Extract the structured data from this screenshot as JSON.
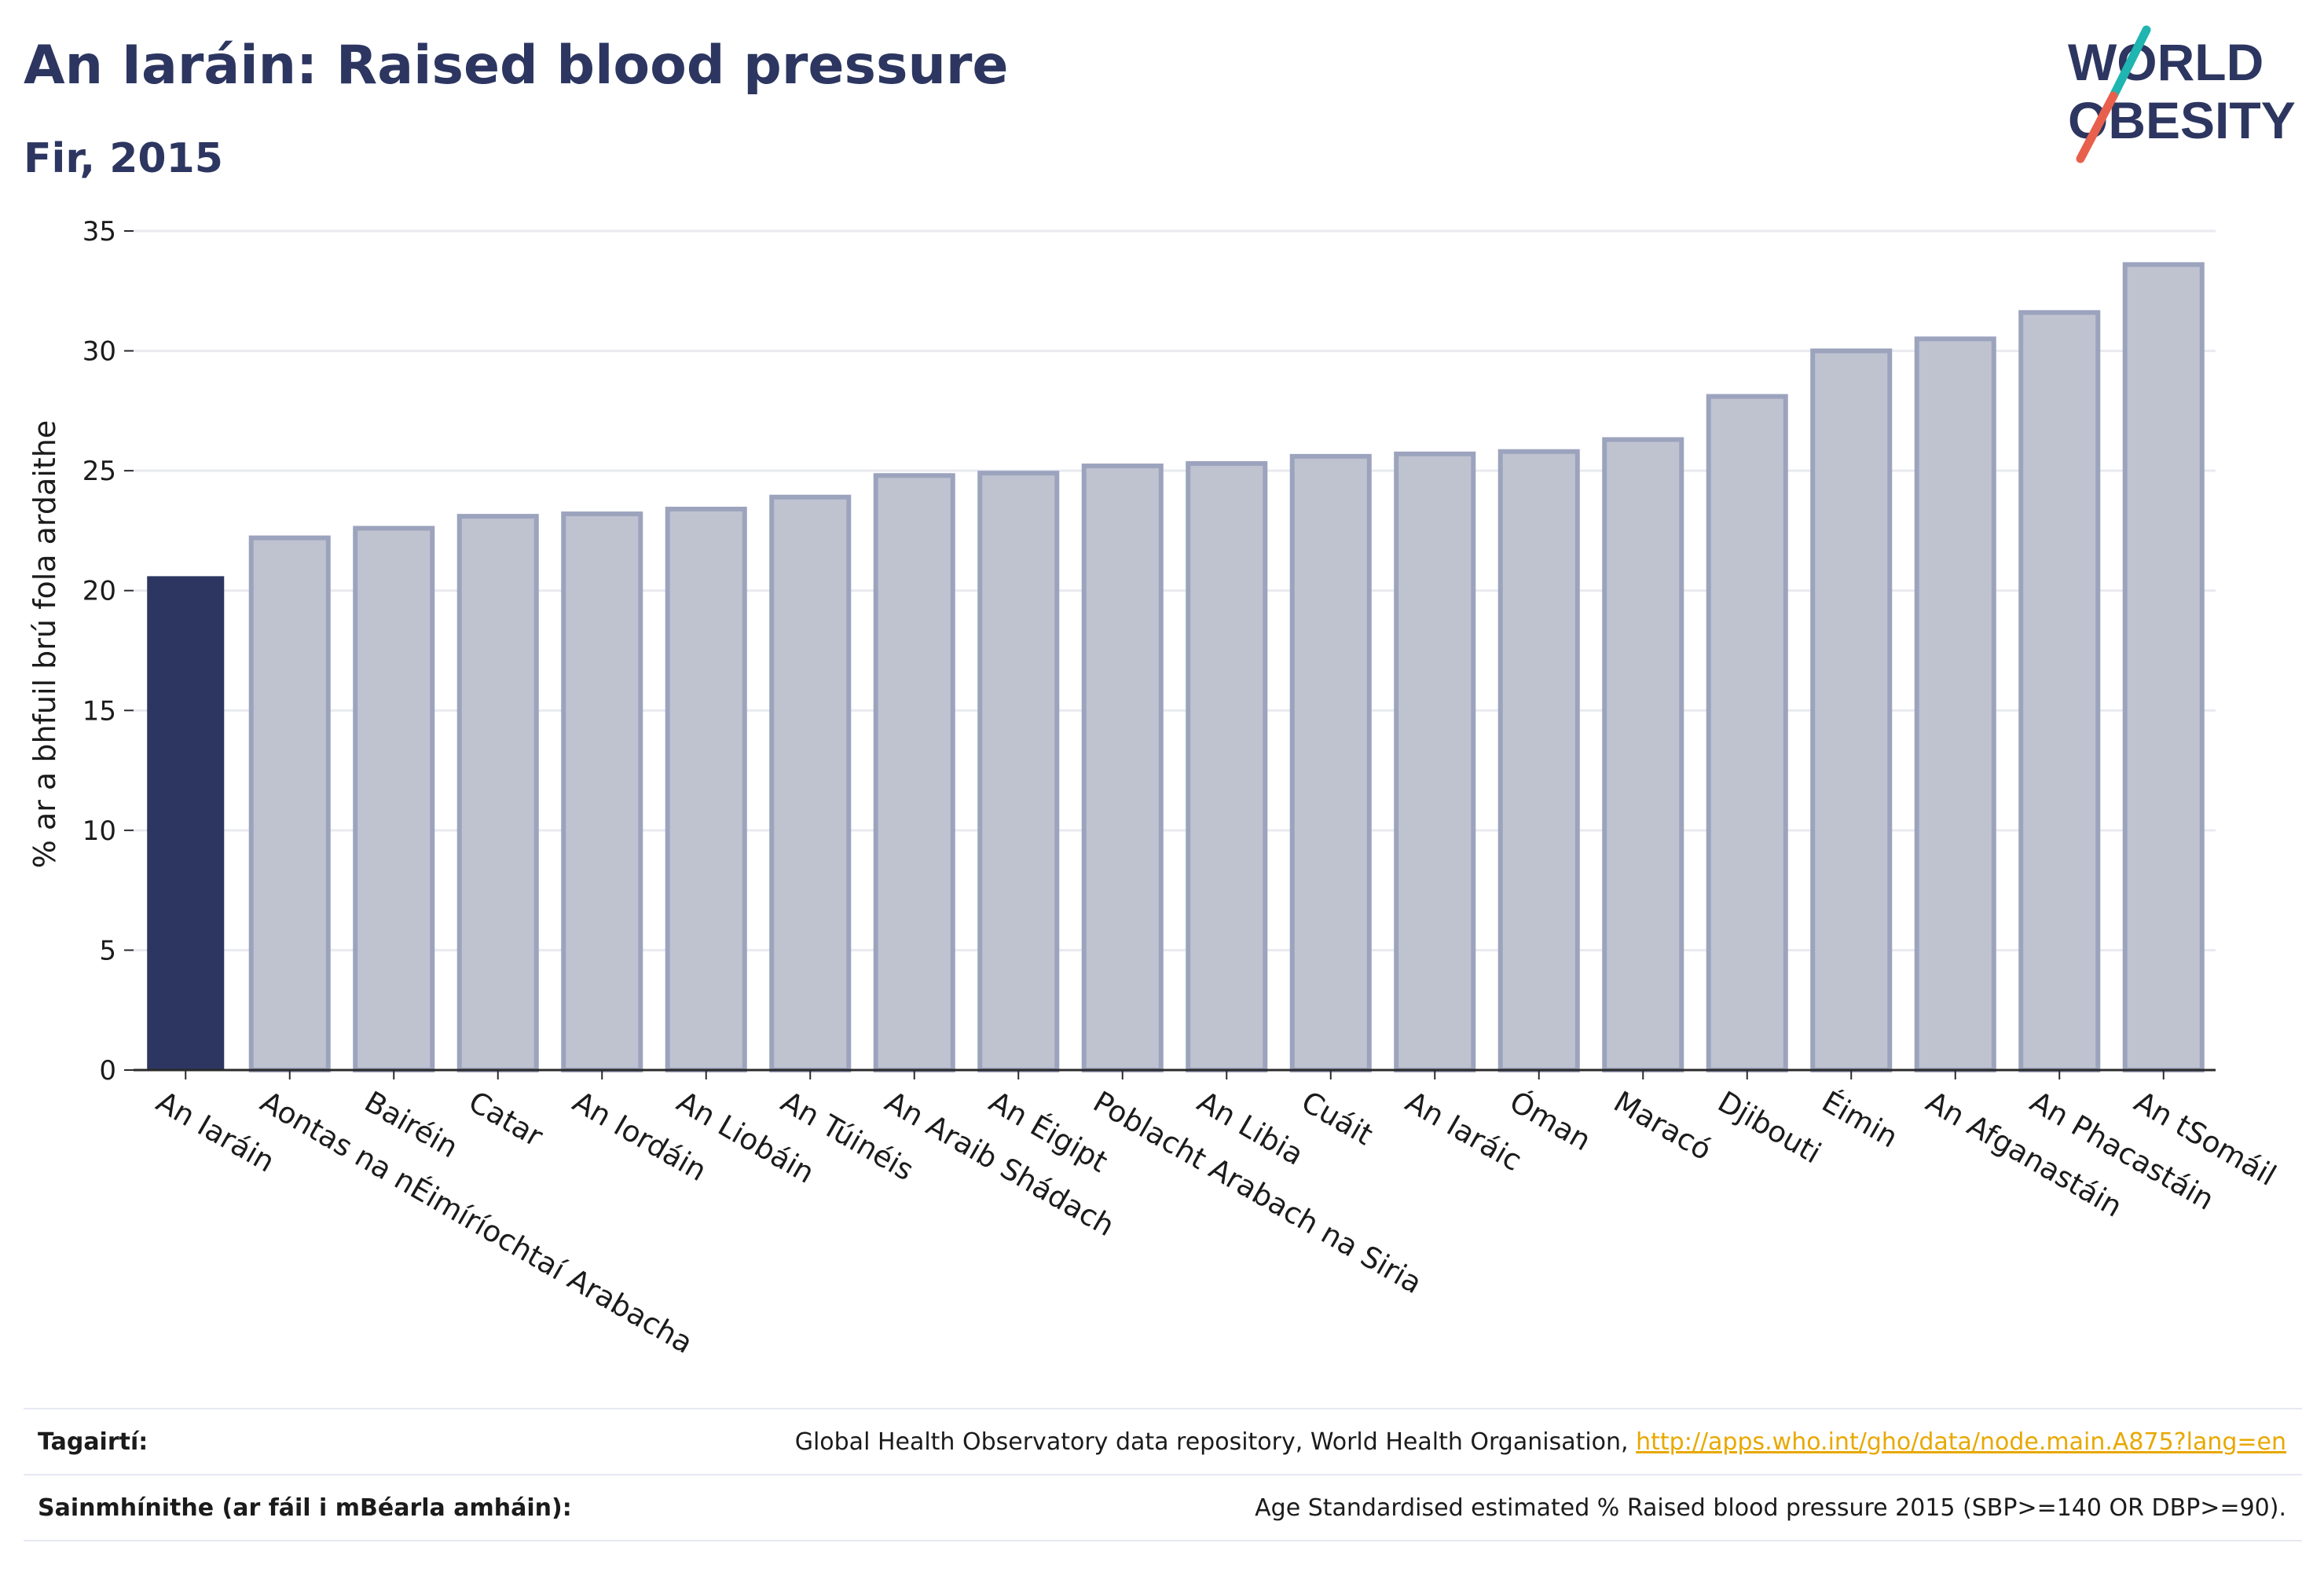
{
  "title": "An Iaráin: Raised blood pressure",
  "subtitle": "Fir, 2015",
  "logo": {
    "line1": "WORLD",
    "line2": "OBESITY",
    "accent_colors": [
      "#1fb5b0",
      "#e8604c"
    ]
  },
  "colors": {
    "highlight": "#2c3660",
    "bars": "#bfc3d0",
    "bar_stroke": "#9ca3bd",
    "grid": "#e9eaf0"
  },
  "chart_data": {
    "type": "bar",
    "title": "An Iaráin: Raised blood pressure",
    "subtitle": "Fir, 2015",
    "ylabel": "% ar a bhfuil brú fola ardaithe",
    "xlabel": "",
    "ylim": [
      0,
      35
    ],
    "yticks": [
      0,
      5,
      10,
      15,
      20,
      25,
      30,
      35
    ],
    "grid": true,
    "highlight_index": 0,
    "categories": [
      "An Iaráin",
      "Aontas na nÉimíríochtaí Arabacha",
      "Bairéin",
      "Catar",
      "An Iordáin",
      "An Liobáin",
      "An Túinéis",
      "An Araib Shádach",
      "An Éigipt",
      "Poblacht Arabach na Siria",
      "An Libia",
      "Cuáit",
      "An Iaráic",
      "Óman",
      "Maracó",
      "Djibouti",
      "Éimin",
      "An Afganastáin",
      "An Phacastáin",
      "An tSomáil"
    ],
    "values": [
      20.6,
      22.2,
      22.6,
      23.1,
      23.2,
      23.4,
      23.9,
      24.8,
      24.9,
      25.2,
      25.3,
      25.6,
      25.7,
      25.8,
      26.3,
      28.1,
      30.0,
      30.5,
      31.6,
      33.6
    ]
  },
  "footer": {
    "references_label": "Tagairtí:",
    "references_text": "Global Health Observatory data repository, World Health Organisation,",
    "references_link": "http://apps.who.int/gho/data/node.main.A875?lang=en",
    "definitions_label": "Sainmhínithe (ar fáil i mBéarla amháin):",
    "definitions_text": "Age Standardised estimated % Raised blood pressure 2015 (SBP>=140 OR DBP>=90)."
  }
}
